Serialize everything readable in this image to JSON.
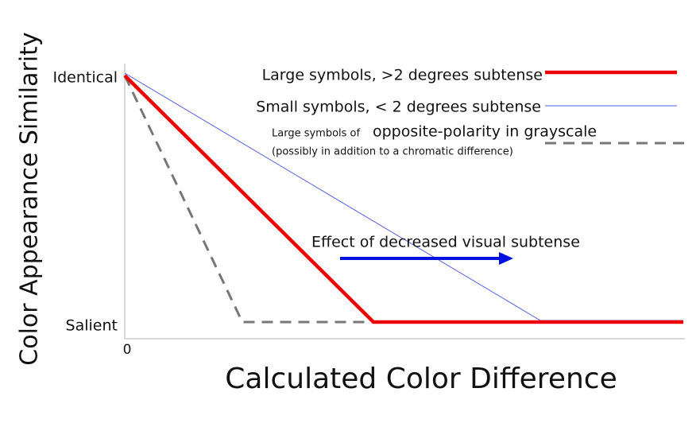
{
  "y_axis": {
    "title": "Color Appearance Similarity",
    "labels": [
      "Identical",
      "Salient"
    ]
  },
  "x_axis": {
    "title": "Calculated Color Difference",
    "origin": "0"
  },
  "legend": [
    {
      "text": "Large symbols, >2 degrees subtense"
    },
    {
      "text": "Small symbols, < 2 degrees subtense"
    },
    {
      "prefix": "Large symbols of",
      "text": "opposite-polarity in grayscale",
      "note": "(possibly in addition to a chromatic difference)"
    }
  ],
  "annotation": "Effect of decreased visual subtense"
}
